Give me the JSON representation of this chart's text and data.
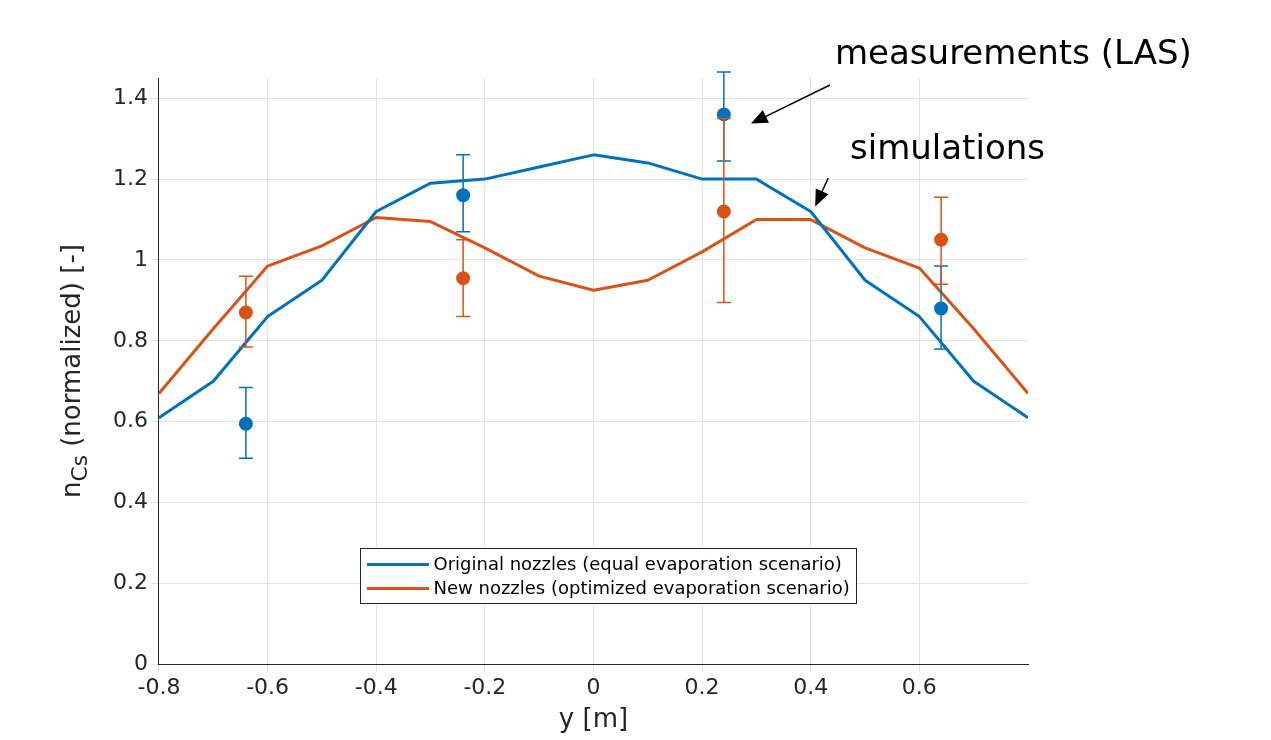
{
  "chart_data": {
    "type": "line",
    "xlabel": "y [m]",
    "ylabel": "n$_{Cs}$ (normalized) [-]",
    "x": [
      -0.8,
      -0.7,
      -0.6,
      -0.5,
      -0.4,
      -0.3,
      -0.2,
      -0.1,
      0,
      0.1,
      0.2,
      0.3,
      0.4,
      0.5,
      0.6,
      0.7,
      0.8
    ],
    "series": [
      {
        "name": "Original nozzles (equal evaporation scenario)",
        "color": "#0072bd",
        "values": [
          0.61,
          0.7,
          0.86,
          0.95,
          1.12,
          1.19,
          1.2,
          1.23,
          1.26,
          1.24,
          1.2,
          1.2,
          1.12,
          0.95,
          0.86,
          0.7,
          0.61
        ]
      },
      {
        "name": "New nozzles (optimized evaporation scenario)",
        "color": "#d95319",
        "values": [
          0.67,
          0.83,
          0.985,
          1.035,
          1.105,
          1.095,
          1.03,
          0.96,
          0.925,
          0.95,
          1.02,
          1.1,
          1.1,
          1.03,
          0.98,
          0.83,
          0.67
        ]
      },
      {
        "type": "scatter",
        "marker": "circle",
        "color": "#0072bd",
        "x": [
          -0.64,
          -0.24,
          0.24,
          0.64
        ],
        "values": [
          0.595,
          1.16,
          1.36,
          0.88
        ],
        "errors": [
          [
            0.51,
            0.685
          ],
          [
            1.07,
            1.26
          ],
          [
            1.245,
            1.465
          ],
          [
            0.78,
            0.985
          ]
        ]
      },
      {
        "type": "scatter",
        "marker": "circle",
        "color": "#d95319",
        "x": [
          -0.64,
          -0.24,
          0.24,
          0.64
        ],
        "values": [
          0.87,
          0.955,
          1.12,
          1.05
        ],
        "errors": [
          [
            0.785,
            0.96
          ],
          [
            0.86,
            1.05
          ],
          [
            0.895,
            1.35
          ],
          [
            0.94,
            1.155
          ]
        ]
      }
    ],
    "xlim": [
      -0.8,
      0.8
    ],
    "xticks": [
      -0.8,
      -0.6,
      -0.4,
      -0.2,
      0,
      0.2,
      0.4,
      0.6
    ],
    "ylim": [
      0,
      1.45
    ],
    "yticks": [
      0,
      0.2,
      0.4,
      0.6,
      0.8,
      1,
      1.2,
      1.4
    ],
    "grid": true,
    "legend": "bottom",
    "annotations": [
      "measurements (LAS)",
      {
        "text": "simulations",
        "x": 0.4,
        "y": 1.11
      }
    ]
  }
}
